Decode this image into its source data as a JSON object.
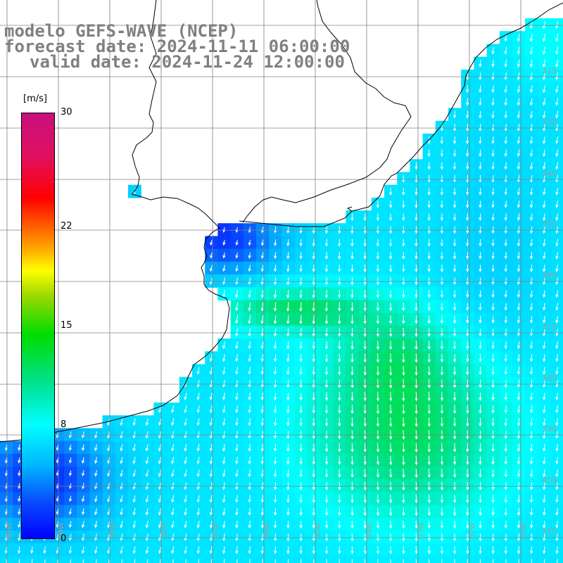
{
  "titles": {
    "line1": "modelo GEFS-WAVE (NCEP)",
    "line2": "forecast date: 2024-11-11 06:00:00",
    "line3": "valid date: 2024-11-24 12:00:00"
  },
  "colorbar": {
    "unit": "[m/s]",
    "min": 0,
    "max": 30,
    "ticks": [
      {
        "value": 30,
        "label": "30"
      },
      {
        "value": 22,
        "label": "22"
      },
      {
        "value": 15,
        "label": "15"
      },
      {
        "value": 8,
        "label": "8"
      },
      {
        "value": 0,
        "label": "0"
      }
    ],
    "colors": [
      "#0000ff",
      "#0a50ff",
      "#00b4ff",
      "#00ffff",
      "#00e08a",
      "#00dd00",
      "#9ad800",
      "#ffff00",
      "#ffaa00",
      "#ff3a00",
      "#ff0000",
      "#e01060",
      "#c8107e"
    ]
  },
  "map": {
    "region": "South Atlantic off southern Brazil / Uruguay / Argentina",
    "lon_range": [
      -62,
      -51
    ],
    "lat_range": [
      -41,
      -31
    ],
    "grid": true,
    "lat_labels": [
      "32S",
      "33S",
      "34S",
      "35S",
      "36S",
      "37S",
      "38S",
      "39S",
      "40S",
      "41S"
    ],
    "lon_labels": [
      "61W",
      "60W",
      "59W",
      "58W",
      "57W",
      "56W",
      "55W",
      "54W",
      "53W",
      "52W",
      "51W"
    ],
    "colors": {
      "land": "#ffffff",
      "coastline": "#000000",
      "grid": "#808080",
      "arrows": "#ffffff",
      "title": "#808080"
    },
    "wind_direction": "predominantly from north / north-east, arrows pointing south-southwest",
    "wind_speed_range_ms": [
      2,
      13
    ],
    "max_speed_zone": "approx. 39S 54W, around 12 m/s"
  }
}
